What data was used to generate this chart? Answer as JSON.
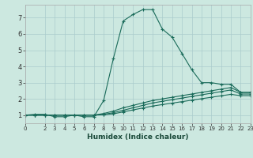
{
  "xlabel": "Humidex (Indice chaleur)",
  "background_color": "#cce8e0",
  "grid_color": "#aacccc",
  "line_color": "#1a6b5a",
  "xlim": [
    0,
    23
  ],
  "ylim": [
    0.5,
    7.8
  ],
  "xticks": [
    0,
    2,
    3,
    4,
    5,
    6,
    7,
    8,
    9,
    10,
    11,
    12,
    13,
    14,
    15,
    16,
    17,
    18,
    19,
    20,
    21,
    22,
    23
  ],
  "yticks": [
    1,
    2,
    3,
    4,
    5,
    6,
    7
  ],
  "series": [
    {
      "x": [
        0,
        1,
        2,
        3,
        4,
        5,
        6,
        7,
        8,
        9,
        10,
        11,
        12,
        13,
        14,
        15,
        16,
        17,
        18,
        19,
        20,
        21,
        22,
        23
      ],
      "y": [
        1.0,
        1.05,
        1.05,
        0.9,
        0.9,
        1.0,
        0.9,
        0.9,
        1.9,
        4.5,
        6.8,
        7.2,
        7.5,
        7.5,
        6.3,
        5.8,
        4.8,
        3.8,
        3.0,
        3.0,
        2.9,
        2.9,
        2.4,
        2.4
      ]
    },
    {
      "x": [
        0,
        1,
        2,
        3,
        4,
        5,
        6,
        7,
        8,
        9,
        10,
        11,
        12,
        13,
        14,
        15,
        16,
        17,
        18,
        19,
        20,
        21,
        22,
        23
      ],
      "y": [
        1.0,
        1.0,
        1.0,
        1.0,
        1.0,
        1.0,
        1.0,
        1.0,
        1.1,
        1.25,
        1.45,
        1.6,
        1.75,
        1.9,
        2.0,
        2.1,
        2.2,
        2.3,
        2.4,
        2.5,
        2.6,
        2.7,
        2.4,
        2.4
      ]
    },
    {
      "x": [
        0,
        1,
        2,
        3,
        4,
        5,
        6,
        7,
        8,
        9,
        10,
        11,
        12,
        13,
        14,
        15,
        16,
        17,
        18,
        19,
        20,
        21,
        22,
        23
      ],
      "y": [
        1.0,
        1.0,
        1.0,
        1.0,
        1.0,
        1.0,
        1.0,
        1.0,
        1.05,
        1.15,
        1.3,
        1.45,
        1.6,
        1.75,
        1.85,
        1.95,
        2.05,
        2.15,
        2.25,
        2.35,
        2.45,
        2.55,
        2.3,
        2.3
      ]
    },
    {
      "x": [
        0,
        1,
        2,
        3,
        4,
        5,
        6,
        7,
        8,
        9,
        10,
        11,
        12,
        13,
        14,
        15,
        16,
        17,
        18,
        19,
        20,
        21,
        22,
        23
      ],
      "y": [
        1.0,
        1.0,
        1.0,
        1.0,
        1.0,
        1.0,
        1.0,
        1.0,
        1.02,
        1.08,
        1.2,
        1.32,
        1.44,
        1.56,
        1.65,
        1.74,
        1.83,
        1.92,
        2.01,
        2.1,
        2.19,
        2.28,
        2.2,
        2.2
      ]
    }
  ]
}
